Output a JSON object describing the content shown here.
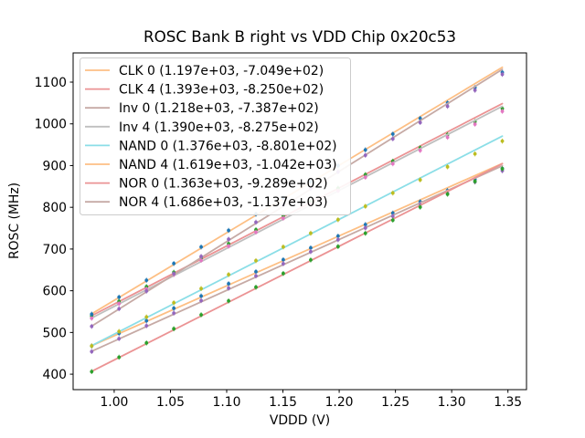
{
  "chart_data": {
    "type": "scatter",
    "title": "ROSC Bank B right vs VDD Chip 0x20c53",
    "xlabel": "VDDD (V)",
    "ylabel": "ROSC (MHz)",
    "xlim": [
      0.9635,
      1.3665
    ],
    "ylim": [
      363,
      1170
    ],
    "grid": false,
    "legend_position": "upper left",
    "background_color": "#ffffff",
    "spine_color": "#000000",
    "legend_border_color": "#cccccc",
    "xticks": [
      1.0,
      1.05,
      1.1,
      1.15,
      1.2,
      1.25,
      1.3,
      1.35
    ],
    "xtick_labels": [
      "1.00",
      "1.05",
      "1.10",
      "1.15",
      "1.20",
      "1.25",
      "1.30",
      "1.35"
    ],
    "yticks": [
      400,
      500,
      600,
      700,
      800,
      900,
      1000,
      1100
    ],
    "ytick_labels": [
      "400",
      "500",
      "600",
      "700",
      "800",
      "900",
      "1000",
      "1100"
    ],
    "x": [
      0.98,
      1.0043,
      1.0287,
      1.053,
      1.0773,
      1.1017,
      1.126,
      1.1503,
      1.1747,
      1.199,
      1.2233,
      1.2477,
      1.272,
      1.2963,
      1.3207,
      1.345
    ],
    "yerr": 6,
    "fit_x_range": [
      0.98,
      1.345
    ],
    "series": [
      {
        "name": "CLK 0",
        "label": "CLK 0 (1.197e+03, -7.049e+02)",
        "slope": 1197,
        "intercept": -704.9,
        "line_color": "#fdbf84",
        "marker_color": "#1f77b4",
        "y": [
          467.6,
          498.0,
          528.2,
          558.0,
          587.5,
          616.8,
          645.7,
          674.4,
          702.8,
          730.9,
          758.6,
          786.1,
          813.3,
          840.2,
          866.8,
          893.1
        ]
      },
      {
        "name": "CLK 4",
        "label": "CLK 4 (1.393e+03, -8.250e+02)",
        "slope": 1393,
        "intercept": -825.0,
        "line_color": "#eb9394",
        "marker_color": "#2ca02c",
        "y": [
          539.5,
          574.7,
          609.7,
          644.3,
          678.6,
          712.7,
          746.3,
          779.8,
          813.0,
          845.8,
          878.3,
          910.5,
          942.5,
          974.1,
          1005.5,
          1036.6
        ]
      },
      {
        "name": "Inv 0",
        "label": "Inv 0 (1.218e+03, -7.387e+02)",
        "slope": 1218,
        "intercept": -738.7,
        "line_color": "#c6aaa5",
        "marker_color": "#9467bd",
        "y": [
          454.3,
          485.2,
          516.0,
          546.4,
          576.4,
          606.2,
          635.6,
          664.8,
          693.7,
          722.3,
          750.5,
          778.5,
          806.2,
          833.6,
          860.7,
          887.5
        ]
      },
      {
        "name": "Inv 4",
        "label": "Inv 4 (1.390e+03, -8.275e+02)",
        "slope": 1390,
        "intercept": -827.5,
        "line_color": "#bfbfbf",
        "marker_color": "#e377c2",
        "y": [
          534.1,
          569.2,
          604.1,
          638.7,
          672.9,
          706.9,
          740.4,
          773.8,
          806.9,
          839.7,
          872.1,
          904.3,
          936.2,
          967.8,
          999.1,
          1030.1
        ]
      },
      {
        "name": "NAND 0",
        "label": "NAND 0 (1.376e+03, -8.801e+02)",
        "slope": 1376,
        "intercept": -880.1,
        "line_color": "#8bdee7",
        "marker_color": "#bcbd22",
        "y": [
          467.8,
          502.5,
          537.1,
          571.3,
          605.2,
          638.8,
          672.1,
          705.1,
          737.9,
          770.3,
          802.4,
          834.2,
          865.8,
          897.0,
          928.0,
          958.6
        ]
      },
      {
        "name": "NAND 4",
        "label": "NAND 4 (1.619e+03, -1.042e+03)",
        "slope": 1619,
        "intercept": -1042.0,
        "line_color": "#fdbf84",
        "marker_color": "#1f77b4",
        "y": [
          544.0,
          584.7,
          625.2,
          665.3,
          705.0,
          744.7,
          783.8,
          822.7,
          861.4,
          899.8,
          937.7,
          975.5,
          1013.0,
          1050.1,
          1087.0,
          1123.6
        ]
      },
      {
        "name": "NOR 0",
        "label": "NOR 0 (1.363e+03, -9.289e+02)",
        "slope": 1363,
        "intercept": -928.9,
        "line_color": "#eb9394",
        "marker_color": "#2ca02c",
        "y": [
          406.2,
          440.7,
          474.9,
          508.8,
          542.4,
          575.7,
          608.6,
          641.4,
          673.8,
          705.9,
          737.7,
          769.2,
          800.4,
          831.4,
          862.0,
          892.3
        ]
      },
      {
        "name": "NOR 4",
        "label": "NOR 4 (1.686e+03, -1.137e+03)",
        "slope": 1686,
        "intercept": -1137.0,
        "line_color": "#c6aaa5",
        "marker_color": "#9467bd",
        "y": [
          514.7,
          556.9,
          599.1,
          640.9,
          682.2,
          723.5,
          764.2,
          804.8,
          845.1,
          885.1,
          924.7,
          964.1,
          1003.2,
          1042.0,
          1080.5,
          1118.7
        ]
      }
    ]
  }
}
